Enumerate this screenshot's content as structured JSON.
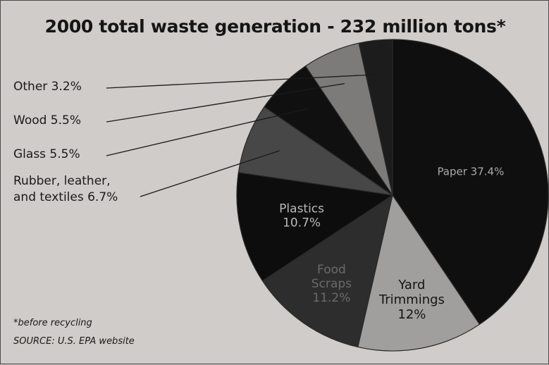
{
  "chart_data": {
    "type": "pie",
    "title": "2000 total waste generation - 232 million tons*",
    "slices": [
      {
        "name": "Paper",
        "label": "Paper 37.4%",
        "value": 37.4,
        "color": "#0f0f0f",
        "text_color": "#a9a9a9"
      },
      {
        "name": "Yard Trimmings",
        "label_lines": [
          "Yard",
          "Trimmings",
          "12%"
        ],
        "value": 12.0,
        "color": "#a19f9d",
        "text_color": "#151515"
      },
      {
        "name": "Food Scraps",
        "label_lines": [
          "Food",
          "Scraps",
          "11.2%"
        ],
        "value": 11.2,
        "color": "#2d2d2d",
        "text_color": "#6a6a6a"
      },
      {
        "name": "Plastics",
        "label_lines": [
          "Plastics",
          "10.7%"
        ],
        "value": 10.7,
        "color": "#0d0d0d",
        "text_color": "#b9b9b9"
      },
      {
        "name": "Rubber, leather, and textiles",
        "label_lines": [
          "Rubber, leather,",
          "and textiles 6.7%"
        ],
        "value": 6.7,
        "color": "#474747"
      },
      {
        "name": "Glass",
        "label_lines": [
          "Glass 5.5%"
        ],
        "value": 5.5,
        "color": "#101010"
      },
      {
        "name": "Wood",
        "label_lines": [
          "Wood 5.5%"
        ],
        "value": 5.5,
        "color": "#7d7b79"
      },
      {
        "name": "Other",
        "label_lines": [
          "Other 3.2%"
        ],
        "value": 3.2,
        "color": "#1c1c1c"
      }
    ],
    "legend": "left, with leader lines"
  },
  "footnotes": {
    "note": "*before recycling",
    "source": "SOURCE: U.S. EPA website"
  },
  "colors": {
    "background": "#cfccc9",
    "border": "#4a4a4a",
    "text": "#1a1a1a"
  }
}
